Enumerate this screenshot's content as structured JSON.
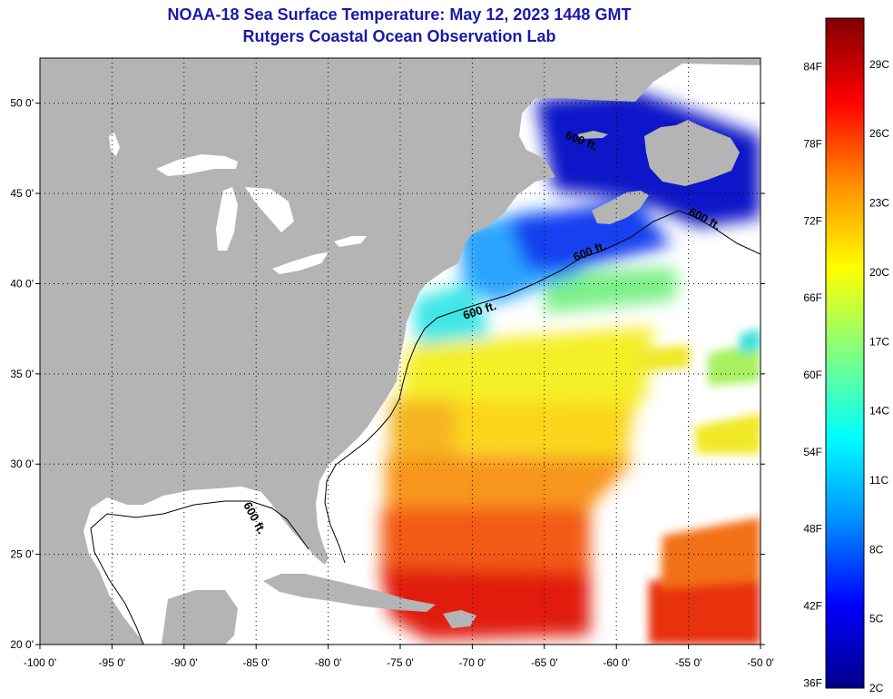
{
  "title": {
    "line1": "NOAA-18 Sea Surface Temperature:  May 12, 2023 1448 GMT",
    "line2": "Rutgers Coastal Ocean Observation Lab"
  },
  "map": {
    "lon_range": [
      -100,
      -50
    ],
    "lat_range": [
      20,
      52.5
    ],
    "lon_ticks": [
      {
        "value": -100,
        "label": "-100 0'"
      },
      {
        "value": -95,
        "label": "-95 0'"
      },
      {
        "value": -90,
        "label": "-90 0'"
      },
      {
        "value": -85,
        "label": "-85 0'"
      },
      {
        "value": -80,
        "label": "-80 0'"
      },
      {
        "value": -75,
        "label": "-75 0'"
      },
      {
        "value": -70,
        "label": "-70 0'"
      },
      {
        "value": -65,
        "label": "-65 0'"
      },
      {
        "value": -60,
        "label": "-60 0'"
      },
      {
        "value": -55,
        "label": "-55 0'"
      },
      {
        "value": -50,
        "label": "-50 0'"
      }
    ],
    "lat_ticks": [
      {
        "value": 50,
        "label": "50 0'"
      },
      {
        "value": 45,
        "label": "45 0'"
      },
      {
        "value": 40,
        "label": "40 0'"
      },
      {
        "value": 35,
        "label": "35 0'"
      },
      {
        "value": 30,
        "label": "30 0'"
      },
      {
        "value": 25,
        "label": "25 0'"
      },
      {
        "value": 20,
        "label": "20 0'"
      }
    ],
    "contour_label": "600 ft.",
    "colors": {
      "land": "#b4b4b4",
      "ocean_nodata": "#ffffff",
      "grid": "#000000"
    }
  },
  "colorbar": {
    "range_c": [
      2,
      31
    ],
    "fahrenheit_labels": [
      "84F",
      "78F",
      "72F",
      "66F",
      "60F",
      "54F",
      "48F",
      "42F",
      "36F"
    ],
    "celsius_labels": [
      "29C",
      "26C",
      "23C",
      "20C",
      "17C",
      "14C",
      "11C",
      "8C",
      "5C",
      "2C"
    ],
    "colors_bottom_to_top": [
      "#00008a",
      "#0000ff",
      "#0090ff",
      "#00ffff",
      "#80ff80",
      "#ffff00",
      "#ff9000",
      "#ff0000",
      "#800000"
    ]
  }
}
